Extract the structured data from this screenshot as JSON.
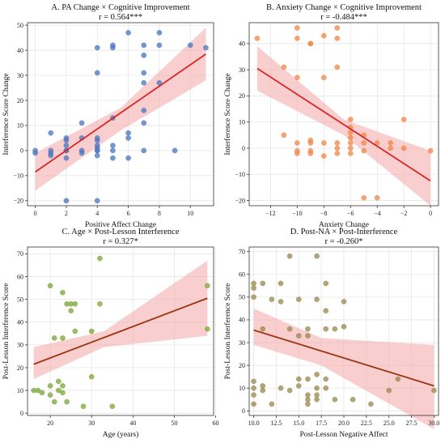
{
  "chart_data": [
    {
      "type": "scatter",
      "title": "A. PA Change × Cognitive Improvement",
      "subtitle": "r = 0.564***",
      "xlabel": "Positive Affect Change",
      "ylabel": "Interference Score Change",
      "xlim": [
        -0.5,
        11.5
      ],
      "ylim": [
        -22,
        51
      ],
      "xticks": [
        0,
        2,
        4,
        6,
        8,
        10
      ],
      "yticks": [
        -20,
        -10,
        0,
        10,
        20,
        30,
        40,
        50
      ],
      "grid": true,
      "point_color": "#4f78c2",
      "line_color": "#d62728",
      "band_color": "#f4a6a6",
      "regression": {
        "x": [
          0,
          11
        ],
        "y": [
          -8.5,
          38.5
        ]
      },
      "band": {
        "x": [
          0,
          5.5,
          11
        ],
        "lower": [
          -16,
          8,
          28
        ],
        "upper": [
          -1,
          17,
          49
        ]
      },
      "points": [
        [
          0,
          -1
        ],
        [
          0,
          0
        ],
        [
          1,
          7
        ],
        [
          1,
          -1
        ],
        [
          1,
          -2
        ],
        [
          1,
          0
        ],
        [
          2,
          5
        ],
        [
          2,
          4
        ],
        [
          2,
          2
        ],
        [
          2,
          0
        ],
        [
          2,
          -3
        ],
        [
          2,
          -20
        ],
        [
          2,
          0
        ],
        [
          3,
          11
        ],
        [
          3,
          5
        ],
        [
          3,
          -1
        ],
        [
          3,
          0
        ],
        [
          4,
          41
        ],
        [
          4,
          31
        ],
        [
          4,
          5
        ],
        [
          4,
          4
        ],
        [
          4,
          2
        ],
        [
          4,
          0
        ],
        [
          4,
          -2
        ],
        [
          4,
          -20
        ],
        [
          4,
          0
        ],
        [
          4,
          1
        ],
        [
          5,
          42
        ],
        [
          5,
          41
        ],
        [
          5,
          13
        ],
        [
          5,
          2
        ],
        [
          5,
          0
        ],
        [
          5,
          -3
        ],
        [
          6,
          47
        ],
        [
          6,
          7
        ],
        [
          6,
          5
        ],
        [
          6,
          -3
        ],
        [
          7,
          42
        ],
        [
          7,
          38
        ],
        [
          7,
          31
        ],
        [
          7,
          27
        ],
        [
          7,
          16
        ],
        [
          7,
          11
        ],
        [
          7,
          0
        ],
        [
          8,
          47
        ],
        [
          8,
          42
        ],
        [
          8,
          27
        ],
        [
          9,
          0
        ],
        [
          10,
          42
        ],
        [
          11,
          41
        ]
      ]
    },
    {
      "type": "scatter",
      "title": "B. Anxiety Change × Cognitive Improvement",
      "subtitle": "r = -0.484***",
      "xlabel": "Anxiety Change",
      "ylabel": "Interference Score Change",
      "xlim": [
        -13.6,
        0.6
      ],
      "ylim": [
        -22,
        48
      ],
      "xticks": [
        -12,
        -10,
        -8,
        -6,
        -4,
        -2,
        0
      ],
      "yticks": [
        -20,
        -10,
        0,
        10,
        20,
        30,
        40
      ],
      "grid": true,
      "point_color": "#f08a4b",
      "line_color": "#d62728",
      "band_color": "#f4a6a6",
      "regression": {
        "x": [
          -13,
          0
        ],
        "y": [
          30.5,
          -12.5
        ]
      },
      "band": {
        "x": [
          -13,
          -6.5,
          0
        ],
        "lower": [
          22,
          5,
          -22
        ],
        "upper": [
          39,
          11,
          -1
        ]
      },
      "points": [
        [
          -13,
          42
        ],
        [
          -11,
          31
        ],
        [
          -11,
          5
        ],
        [
          -10,
          46
        ],
        [
          -10,
          42
        ],
        [
          -10,
          27
        ],
        [
          -10,
          2
        ],
        [
          -10,
          -1
        ],
        [
          -10,
          -2
        ],
        [
          -9,
          40
        ],
        [
          -9,
          40
        ],
        [
          -9,
          3
        ],
        [
          -9,
          2
        ],
        [
          -9,
          -1
        ],
        [
          -9,
          -2
        ],
        [
          -8,
          43
        ],
        [
          -8,
          27
        ],
        [
          -8,
          2
        ],
        [
          -8,
          -3
        ],
        [
          -7,
          46
        ],
        [
          -7,
          42
        ],
        [
          -7,
          31
        ],
        [
          -7,
          2
        ],
        [
          -7,
          0
        ],
        [
          -7,
          -2
        ],
        [
          -6,
          11
        ],
        [
          -6,
          8
        ],
        [
          -6,
          6
        ],
        [
          -6,
          4
        ],
        [
          -6,
          2
        ],
        [
          -6,
          0
        ],
        [
          -6,
          -2
        ],
        [
          -5,
          5
        ],
        [
          -5,
          2
        ],
        [
          -5,
          -1
        ],
        [
          -5,
          -19
        ],
        [
          -4,
          2
        ],
        [
          -4,
          -19
        ],
        [
          -3,
          2
        ],
        [
          -3,
          0
        ],
        [
          -2,
          11
        ],
        [
          -2,
          0
        ],
        [
          0,
          -1
        ]
      ]
    },
    {
      "type": "scatter",
      "title": "C. Age × Post-Lesson Interference",
      "subtitle": "r = 0.327*",
      "xlabel": "Age (years)",
      "ylabel": "Post-Lesson Interference Score",
      "xlim": [
        14.5,
        59.5
      ],
      "ylim": [
        -1,
        73
      ],
      "xticks": [
        20,
        30,
        40,
        50,
        60
      ],
      "yticks": [
        0,
        10,
        20,
        30,
        40,
        50,
        60,
        70
      ],
      "grid": true,
      "point_color": "#7fa83e",
      "line_color": "#9a3412",
      "band_color": "#f4a6a6",
      "regression": {
        "x": [
          16,
          58
        ],
        "y": [
          21.5,
          50.5
        ]
      },
      "band": {
        "x": [
          16,
          33,
          58
        ],
        "lower": [
          15,
          29,
          34
        ],
        "upper": [
          29,
          36,
          67
        ]
      },
      "points": [
        [
          16,
          10
        ],
        [
          17,
          10
        ],
        [
          18,
          9
        ],
        [
          20,
          56
        ],
        [
          20,
          12
        ],
        [
          20,
          8
        ],
        [
          21,
          33
        ],
        [
          21,
          5
        ],
        [
          22,
          14
        ],
        [
          22,
          10
        ],
        [
          23,
          53
        ],
        [
          23,
          33
        ],
        [
          23,
          12
        ],
        [
          23,
          9
        ],
        [
          24,
          48
        ],
        [
          24,
          5
        ],
        [
          25,
          48
        ],
        [
          25,
          45
        ],
        [
          26,
          48
        ],
        [
          26,
          36
        ],
        [
          28,
          3
        ],
        [
          30,
          36
        ],
        [
          30,
          16
        ],
        [
          32,
          68
        ],
        [
          32,
          48
        ],
        [
          35,
          3
        ],
        [
          58,
          56
        ],
        [
          58,
          37
        ]
      ]
    },
    {
      "type": "scatter",
      "title": "D. Post-NA × Post-Interference",
      "subtitle": "r = -0.260*",
      "xlabel": "Post-Lesson Negative Affect",
      "ylabel": "Post-Lesson Interference Score",
      "xlim": [
        9.5,
        30.5
      ],
      "ylim": [
        -2,
        72
      ],
      "xticks": [
        10.0,
        12.5,
        15.0,
        17.5,
        20.0,
        22.5,
        25.0,
        27.5,
        30.0
      ],
      "xtick_labels": [
        "10.0",
        "12.5",
        "15.0",
        "17.5",
        "20.0",
        "22.5",
        "25.0",
        "27.5",
        "30.0"
      ],
      "yticks": [
        0,
        10,
        20,
        30,
        40,
        50,
        60,
        70
      ],
      "grid": true,
      "point_color": "#9b8a52",
      "line_color": "#9a3412",
      "band_color": "#f4a6a6",
      "regression": {
        "x": [
          10,
          30
        ],
        "y": [
          35.5,
          11
        ]
      },
      "band": {
        "x": [
          10,
          17.5,
          30
        ],
        "lower": [
          29,
          20,
          -8
        ],
        "upper": [
          45,
          32,
          29
        ]
      },
      "points": [
        [
          10,
          56
        ],
        [
          10,
          54
        ],
        [
          10,
          50
        ],
        [
          10,
          13
        ],
        [
          10,
          10
        ],
        [
          10,
          7
        ],
        [
          10,
          3
        ],
        [
          11,
          56
        ],
        [
          11,
          36
        ],
        [
          11,
          11
        ],
        [
          11,
          9
        ],
        [
          12,
          49
        ],
        [
          12,
          3
        ],
        [
          13,
          56
        ],
        [
          13,
          48
        ],
        [
          13,
          10
        ],
        [
          14,
          68
        ],
        [
          14,
          36
        ],
        [
          14,
          9
        ],
        [
          15,
          49
        ],
        [
          15,
          33
        ],
        [
          15,
          14
        ],
        [
          15,
          11
        ],
        [
          16,
          36
        ],
        [
          16,
          33
        ],
        [
          16,
          14
        ],
        [
          16,
          7
        ],
        [
          16,
          5
        ],
        [
          16,
          3
        ],
        [
          17,
          68
        ],
        [
          17,
          49
        ],
        [
          17,
          16
        ],
        [
          17,
          10
        ],
        [
          17,
          7
        ],
        [
          17,
          5
        ],
        [
          18,
          56
        ],
        [
          18,
          44
        ],
        [
          18,
          36
        ],
        [
          18,
          14
        ],
        [
          18,
          10
        ],
        [
          19,
          36
        ],
        [
          19,
          5
        ],
        [
          20,
          48
        ],
        [
          20,
          37
        ],
        [
          21,
          5
        ],
        [
          23,
          3
        ],
        [
          25,
          9
        ],
        [
          26,
          14
        ],
        [
          30,
          9
        ]
      ]
    }
  ]
}
